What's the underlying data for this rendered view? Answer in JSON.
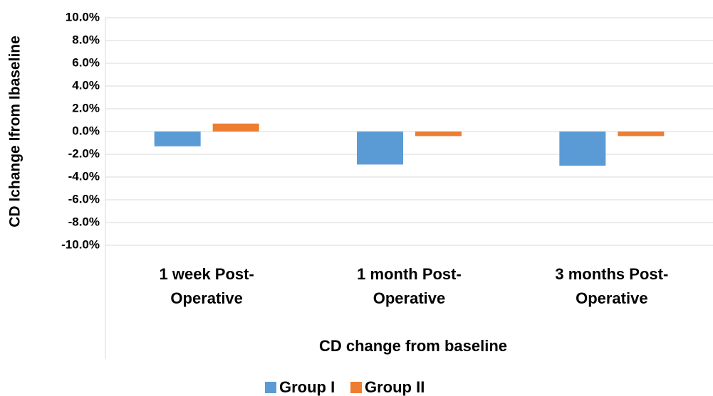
{
  "chart_data": {
    "type": "bar",
    "x_label": "CD change from baseline",
    "y_label": "CD Ichange Ifrom Ibaseline",
    "categories": [
      "1 week Post-Operative",
      "1 month Post-Operative",
      "3 months Post-Operative"
    ],
    "series": [
      {
        "name": "Group I",
        "color": "#5b9bd5",
        "values": [
          -1.3,
          -2.9,
          -3.0
        ]
      },
      {
        "name": "Group II",
        "color": "#ed7d31",
        "values": [
          0.7,
          -0.4,
          -0.4
        ]
      }
    ],
    "ylim": [
      -10,
      10
    ],
    "yticks": [
      {
        "value": -10,
        "label": "-10.0%"
      },
      {
        "value": -8,
        "label": "-8.0%"
      },
      {
        "value": -6,
        "label": "-6.0%"
      },
      {
        "value": -4,
        "label": "-4.0%"
      },
      {
        "value": -2,
        "label": "-2.0%"
      },
      {
        "value": 0,
        "label": "0.0%"
      },
      {
        "value": 2,
        "label": "2.0%"
      },
      {
        "value": 4,
        "label": "4.0%"
      },
      {
        "value": 6,
        "label": "6.0%"
      },
      {
        "value": 8,
        "label": "8.0%"
      },
      {
        "value": 10,
        "label": "10.0%"
      }
    ],
    "grid": true,
    "legend": "bottom"
  }
}
